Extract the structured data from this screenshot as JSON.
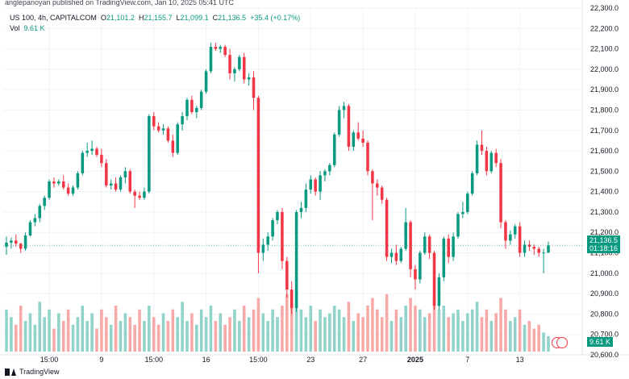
{
  "header": {
    "published": "anglepanoyan published on TradingView.com, Jan 10, 2025 05:41 UTC",
    "symbol": "US 100, 4h, CAPITALCOM",
    "o_label": "O",
    "o_val": "21,101.2",
    "h_label": "H",
    "h_val": "21,155.7",
    "l_label": "L",
    "l_val": "21,099.1",
    "c_label": "C",
    "c_val": "21,136.5",
    "change": "+35.4 (+0.17%)",
    "vol_label": "Vol",
    "vol_val": "9.61 K"
  },
  "badges": {
    "price": "21,136.5",
    "countdown": "01:18:16",
    "volume": "9.61 K"
  },
  "footer": {
    "brand": "TradingView"
  },
  "colors": {
    "up": "#089981",
    "down": "#f23645",
    "up_vol": "#8fd3c9",
    "down_vol": "#f7a9a7",
    "grid": "#f0f3fa",
    "price_line": "#089981"
  },
  "chart_data": {
    "type": "candlestick",
    "ylim": [
      20600,
      22300
    ],
    "y_ticks": [
      "20,600.0",
      "20,700.0",
      "20,800.0",
      "20,900.0",
      "21,000.0",
      "21,100.0",
      "21,200.0",
      "21,300.0",
      "21,400.0",
      "21,500.0",
      "21,600.0",
      "21,700.0",
      "21,800.0",
      "21,900.0",
      "22,000.0",
      "22,100.0",
      "22,200.0",
      "22,300.0"
    ],
    "x_ticks": [
      {
        "label": "15:00",
        "i": 9
      },
      {
        "label": "9",
        "i": 20
      },
      {
        "label": "15:00",
        "i": 31
      },
      {
        "label": "16",
        "i": 42
      },
      {
        "label": "15:00",
        "i": 53
      },
      {
        "label": "23",
        "i": 64
      },
      {
        "label": "27",
        "i": 75
      },
      {
        "label": "2025",
        "i": 86
      },
      {
        "label": "7",
        "i": 97
      },
      {
        "label": "13",
        "i": 108
      }
    ],
    "last_price": 21136.5,
    "candles": [
      [
        21130,
        21180,
        21090,
        21150
      ],
      [
        21150,
        21175,
        21120,
        21160
      ],
      [
        21160,
        21190,
        21130,
        21145
      ],
      [
        21145,
        21150,
        21100,
        21120
      ],
      [
        21120,
        21200,
        21110,
        21185
      ],
      [
        21185,
        21260,
        21180,
        21250
      ],
      [
        21250,
        21290,
        21230,
        21270
      ],
      [
        21270,
        21340,
        21250,
        21330
      ],
      [
        21330,
        21380,
        21310,
        21370
      ],
      [
        21370,
        21460,
        21360,
        21450
      ],
      [
        21450,
        21470,
        21420,
        21440
      ],
      [
        21440,
        21460,
        21430,
        21450
      ],
      [
        21450,
        21480,
        21410,
        21420
      ],
      [
        21420,
        21440,
        21380,
        21390
      ],
      [
        21390,
        21430,
        21380,
        21420
      ],
      [
        21420,
        21500,
        21410,
        21490
      ],
      [
        21490,
        21600,
        21480,
        21590
      ],
      [
        21590,
        21640,
        21570,
        21600
      ],
      [
        21600,
        21650,
        21580,
        21610
      ],
      [
        21610,
        21620,
        21570,
        21580
      ],
      [
        21580,
        21610,
        21520,
        21540
      ],
      [
        21540,
        21560,
        21420,
        21430
      ],
      [
        21430,
        21460,
        21410,
        21440
      ],
      [
        21440,
        21470,
        21400,
        21410
      ],
      [
        21410,
        21480,
        21400,
        21470
      ],
      [
        21470,
        21520,
        21440,
        21500
      ],
      [
        21500,
        21510,
        21390,
        21400
      ],
      [
        21400,
        21410,
        21320,
        21380
      ],
      [
        21380,
        21400,
        21360,
        21370
      ],
      [
        21370,
        21420,
        21360,
        21400
      ],
      [
        21400,
        21780,
        21390,
        21770
      ],
      [
        21770,
        21790,
        21700,
        21720
      ],
      [
        21720,
        21740,
        21690,
        21700
      ],
      [
        21700,
        21730,
        21680,
        21710
      ],
      [
        21710,
        21720,
        21640,
        21650
      ],
      [
        21650,
        21680,
        21570,
        21590
      ],
      [
        21590,
        21740,
        21580,
        21730
      ],
      [
        21730,
        21790,
        21700,
        21770
      ],
      [
        21770,
        21860,
        21750,
        21850
      ],
      [
        21850,
        21870,
        21780,
        21790
      ],
      [
        21790,
        21820,
        21760,
        21810
      ],
      [
        21810,
        21900,
        21800,
        21890
      ],
      [
        21890,
        22000,
        21880,
        21990
      ],
      [
        21990,
        22130,
        21980,
        22110
      ],
      [
        22110,
        22130,
        22090,
        22100
      ],
      [
        22100,
        22120,
        22080,
        22110
      ],
      [
        22110,
        22120,
        22060,
        22070
      ],
      [
        22070,
        22100,
        21950,
        21980
      ],
      [
        21980,
        22010,
        21940,
        22000
      ],
      [
        22000,
        22070,
        21990,
        22060
      ],
      [
        22060,
        22080,
        21930,
        21950
      ],
      [
        21950,
        21980,
        21920,
        21960
      ],
      [
        21960,
        21990,
        21800,
        21860
      ],
      [
        21860,
        21870,
        21000,
        21100
      ],
      [
        21100,
        21170,
        21060,
        21140
      ],
      [
        21140,
        21200,
        21110,
        21180
      ],
      [
        21180,
        21270,
        21160,
        21260
      ],
      [
        21260,
        21310,
        21240,
        21300
      ],
      [
        21300,
        21320,
        21020,
        21060
      ],
      [
        21060,
        21080,
        20880,
        20920
      ],
      [
        20920,
        20960,
        20800,
        20830
      ],
      [
        20830,
        21310,
        20810,
        21300
      ],
      [
        21300,
        21350,
        21270,
        21320
      ],
      [
        21320,
        21440,
        21300,
        21410
      ],
      [
        21410,
        21480,
        21390,
        21460
      ],
      [
        21460,
        21470,
        21380,
        21400
      ],
      [
        21400,
        21500,
        21360,
        21480
      ],
      [
        21480,
        21510,
        21450,
        21500
      ],
      [
        21500,
        21540,
        21480,
        21530
      ],
      [
        21530,
        21690,
        21520,
        21680
      ],
      [
        21680,
        21820,
        21670,
        21800
      ],
      [
        21800,
        21840,
        21760,
        21820
      ],
      [
        21820,
        21830,
        21600,
        21620
      ],
      [
        21620,
        21700,
        21600,
        21690
      ],
      [
        21690,
        21740,
        21650,
        21660
      ],
      [
        21660,
        21700,
        21620,
        21640
      ],
      [
        21640,
        21650,
        21480,
        21500
      ],
      [
        21500,
        21510,
        21260,
        21440
      ],
      [
        21440,
        21460,
        21380,
        21420
      ],
      [
        21420,
        21430,
        21340,
        21360
      ],
      [
        21360,
        21370,
        21060,
        21080
      ],
      [
        21080,
        21120,
        21050,
        21100
      ],
      [
        21100,
        21140,
        21040,
        21060
      ],
      [
        21060,
        21130,
        21050,
        21120
      ],
      [
        21120,
        21320,
        21110,
        21250
      ],
      [
        21250,
        21260,
        20980,
        21020
      ],
      [
        21020,
        21040,
        20920,
        20970
      ],
      [
        20970,
        21110,
        20950,
        21100
      ],
      [
        21100,
        21200,
        21090,
        21180
      ],
      [
        21180,
        21190,
        21070,
        21100
      ],
      [
        21100,
        21110,
        20820,
        20840
      ],
      [
        20840,
        21000,
        20820,
        20980
      ],
      [
        20980,
        21180,
        20960,
        21170
      ],
      [
        21170,
        21190,
        21050,
        21080
      ],
      [
        21080,
        21200,
        21060,
        21180
      ],
      [
        21180,
        21300,
        21170,
        21290
      ],
      [
        21290,
        21350,
        21270,
        21300
      ],
      [
        21300,
        21400,
        21290,
        21390
      ],
      [
        21390,
        21500,
        21380,
        21490
      ],
      [
        21490,
        21650,
        21480,
        21630
      ],
      [
        21630,
        21700,
        21580,
        21600
      ],
      [
        21600,
        21620,
        21480,
        21500
      ],
      [
        21500,
        21600,
        21490,
        21590
      ],
      [
        21590,
        21610,
        21520,
        21540
      ],
      [
        21540,
        21560,
        21220,
        21250
      ],
      [
        21250,
        21260,
        21120,
        21160
      ],
      [
        21160,
        21210,
        21140,
        21190
      ],
      [
        21190,
        21240,
        21170,
        21230
      ],
      [
        21230,
        21250,
        21080,
        21100
      ],
      [
        21100,
        21160,
        21080,
        21140
      ],
      [
        21140,
        21160,
        21110,
        21130
      ],
      [
        21130,
        21140,
        21090,
        21120
      ],
      [
        21120,
        21130,
        21080,
        21100
      ],
      [
        21100,
        21120,
        21000,
        21101.2
      ],
      [
        21101.2,
        21155.7,
        21099.1,
        21136.5
      ]
    ],
    "volumes": [
      0.55,
      0.45,
      0.35,
      0.6,
      0.4,
      0.5,
      0.35,
      0.65,
      0.45,
      0.55,
      0.3,
      0.5,
      0.4,
      0.55,
      0.35,
      0.45,
      0.6,
      0.4,
      0.5,
      0.3,
      0.55,
      0.45,
      0.35,
      0.6,
      0.4,
      0.5,
      0.45,
      0.35,
      0.55,
      0.4,
      0.6,
      0.45,
      0.35,
      0.5,
      0.4,
      0.55,
      0.45,
      0.65,
      0.4,
      0.5,
      0.35,
      0.55,
      0.45,
      0.6,
      0.4,
      0.5,
      0.35,
      0.45,
      0.55,
      0.4,
      0.6,
      0.45,
      0.55,
      0.7,
      0.5,
      0.4,
      0.55,
      0.45,
      0.6,
      0.75,
      0.65,
      0.8,
      0.55,
      0.45,
      0.6,
      0.4,
      0.55,
      0.45,
      0.5,
      0.6,
      0.55,
      0.45,
      0.65,
      0.4,
      0.5,
      0.45,
      0.6,
      0.7,
      0.55,
      0.45,
      0.75,
      0.4,
      0.55,
      0.45,
      0.6,
      0.7,
      0.6,
      0.55,
      0.45,
      0.5,
      0.7,
      0.55,
      0.6,
      0.45,
      0.5,
      0.55,
      0.4,
      0.5,
      0.55,
      0.65,
      0.45,
      0.55,
      0.4,
      0.5,
      0.7,
      0.55,
      0.4,
      0.45,
      0.55,
      0.35,
      0.4,
      0.3,
      0.35,
      0.25,
      0.2
    ]
  }
}
